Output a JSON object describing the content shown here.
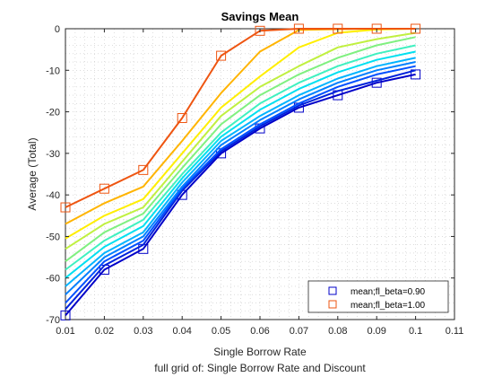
{
  "chart_data": {
    "type": "line",
    "title": "Savings Mean",
    "xlabel": "Single Borrow Rate",
    "subtitle": "full grid of: Single Borrow Rate and Discount",
    "ylabel": "Average (Total)",
    "xlim": [
      0.01,
      0.11
    ],
    "ylim": [
      -70,
      0
    ],
    "xticks": [
      0.01,
      0.02,
      0.03,
      0.04,
      0.05,
      0.06,
      0.07,
      0.08,
      0.09,
      0.1,
      0.11
    ],
    "xtick_labels": [
      "0.01",
      "0.02",
      "0.03",
      "0.04",
      "0.05",
      "0.06",
      "0.07",
      "0.08",
      "0.09",
      "0.1",
      "0.11"
    ],
    "yticks": [
      -70,
      -60,
      -50,
      -40,
      -30,
      -20,
      -10,
      0
    ],
    "ytick_labels": [
      "-70",
      "-60",
      "-50",
      "-40",
      "-30",
      "-20",
      "-10",
      "0"
    ],
    "grid": "minor-dotted",
    "legend_position": "bottom-right",
    "x": [
      0.01,
      0.02,
      0.03,
      0.04,
      0.05,
      0.06,
      0.07,
      0.08,
      0.09,
      0.1
    ],
    "series": [
      {
        "name": "mean;fl_beta=0.90",
        "color": "#0000c8",
        "marker": "square",
        "values": [
          -69,
          -58,
          -53,
          -40,
          -30,
          -24,
          -19,
          -16,
          -13,
          -11
        ]
      },
      {
        "color": "#0022dc",
        "values": [
          -67.5,
          -57,
          -52,
          -39,
          -29.5,
          -23.5,
          -18.5,
          -15,
          -12.5,
          -10
        ]
      },
      {
        "color": "#0050ff",
        "values": [
          -66,
          -56,
          -51,
          -38.5,
          -29,
          -23,
          -18,
          -14,
          -11,
          -9
        ]
      },
      {
        "color": "#0080ff",
        "values": [
          -64,
          -55,
          -50,
          -38,
          -28,
          -22,
          -17,
          -13,
          -10,
          -8
        ]
      },
      {
        "color": "#00b4ff",
        "values": [
          -62,
          -54,
          -49,
          -37,
          -27,
          -21,
          -16,
          -12,
          -9,
          -7
        ]
      },
      {
        "color": "#00e0f0",
        "values": [
          -60,
          -52.5,
          -47.5,
          -36,
          -26,
          -19.5,
          -14.5,
          -10.5,
          -7.5,
          -5.5
        ]
      },
      {
        "color": "#40f0c0",
        "values": [
          -58,
          -51,
          -46,
          -35,
          -25,
          -18,
          -13,
          -9,
          -6,
          -4
        ]
      },
      {
        "color": "#80f080",
        "values": [
          -56,
          -49,
          -44.5,
          -33.5,
          -23,
          -16,
          -11,
          -7,
          -4,
          -2
        ]
      },
      {
        "color": "#c0f040",
        "values": [
          -53,
          -47,
          -43,
          -32,
          -21,
          -14,
          -9,
          -4.5,
          -2.5,
          -1
        ]
      },
      {
        "color": "#ffee00",
        "values": [
          -50.5,
          -45,
          -41,
          -30,
          -19,
          -11.5,
          -4.5,
          -1,
          -0.2,
          0
        ]
      },
      {
        "color": "#ffb400",
        "values": [
          -47,
          -42,
          -38,
          -27,
          -15.5,
          -5.5,
          -0.3,
          -0.1,
          0,
          0
        ]
      },
      {
        "name": "mean;fl_beta=1.00",
        "color": "#ee5511",
        "marker": "square",
        "values": [
          -43,
          -38.5,
          -34,
          -21.5,
          -6.5,
          -0.5,
          0,
          0,
          0,
          0
        ]
      }
    ]
  }
}
